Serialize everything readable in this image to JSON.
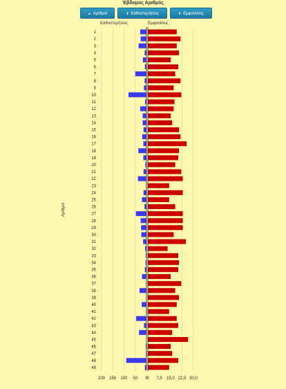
{
  "title": "Έβδομος Αριθμός",
  "buttons": [
    {
      "label": "Αριθμοί",
      "icon": "sort-up-icon"
    },
    {
      "label": "Καθυστερήσεις",
      "icon": "sort-icon"
    },
    {
      "label": "Εμφανίσεις",
      "icon": "sort-icon"
    }
  ],
  "colors": {
    "left_bars": "#3a3af0",
    "right_bars": "#cc0000",
    "background": "#fdf8b0",
    "button": "#2489b5"
  },
  "chart_data": [
    {
      "type": "bar",
      "orientation": "horizontal",
      "title": "Καθυστερήσεις",
      "ylabel": "Αριθμοί",
      "xlim": [
        0,
        200
      ],
      "x_reversed": true,
      "xticks": [
        200,
        150,
        100,
        50,
        0
      ],
      "xtick_labels": [
        "200",
        "150",
        "100",
        "50",
        "0"
      ],
      "grid": true,
      "categories": [
        "1",
        "2",
        "3",
        "4",
        "5",
        "6",
        "7",
        "8",
        "9",
        "10",
        "11",
        "12",
        "13",
        "14",
        "15",
        "16",
        "17",
        "18",
        "19",
        "20",
        "21",
        "22",
        "23",
        "24",
        "25",
        "26",
        "27",
        "28",
        "29",
        "30",
        "31",
        "32",
        "33",
        "34",
        "35",
        "36",
        "37",
        "38",
        "39",
        "40",
        "41",
        "42",
        "43",
        "44",
        "45",
        "46",
        "47",
        "48",
        "49"
      ],
      "values": [
        28,
        26,
        35,
        8,
        16,
        7,
        50,
        8,
        11,
        80,
        6,
        28,
        17,
        17,
        13,
        19,
        14,
        36,
        14,
        5,
        13,
        38,
        2,
        13,
        20,
        9,
        47,
        26,
        24,
        23,
        15,
        6,
        3,
        4,
        7,
        20,
        2,
        31,
        2,
        21,
        2,
        46,
        11,
        33,
        0,
        3,
        3,
        90,
        7
      ]
    },
    {
      "type": "bar",
      "orientation": "horizontal",
      "title": "Εμφανίσεις",
      "xlim": [
        0,
        30
      ],
      "xticks": [
        0,
        7.5,
        15,
        22.5,
        30
      ],
      "xtick_labels": [
        "0",
        "7,5",
        "15,0",
        "22,5",
        "30,0"
      ],
      "grid": true,
      "categories": [
        "1",
        "2",
        "3",
        "4",
        "5",
        "6",
        "7",
        "8",
        "9",
        "10",
        "11",
        "12",
        "13",
        "14",
        "15",
        "16",
        "17",
        "18",
        "19",
        "20",
        "21",
        "22",
        "23",
        "24",
        "25",
        "26",
        "27",
        "28",
        "29",
        "30",
        "31",
        "32",
        "33",
        "34",
        "35",
        "36",
        "37",
        "38",
        "39",
        "40",
        "41",
        "42",
        "43",
        "44",
        "45",
        "46",
        "47",
        "48",
        "49"
      ],
      "values": [
        19,
        21.5,
        19,
        20.5,
        15,
        20,
        18,
        21.5,
        17,
        22,
        17.5,
        17,
        15,
        16,
        20.5,
        21.5,
        25.5,
        20.5,
        20,
        18,
        22,
        23,
        14,
        23,
        14,
        18,
        23,
        23,
        23,
        17,
        25,
        13,
        20,
        20.5,
        20,
        15,
        22,
        18,
        20.5,
        19,
        14,
        19,
        20,
        16,
        26.5,
        15,
        16,
        20,
        14
      ]
    }
  ]
}
